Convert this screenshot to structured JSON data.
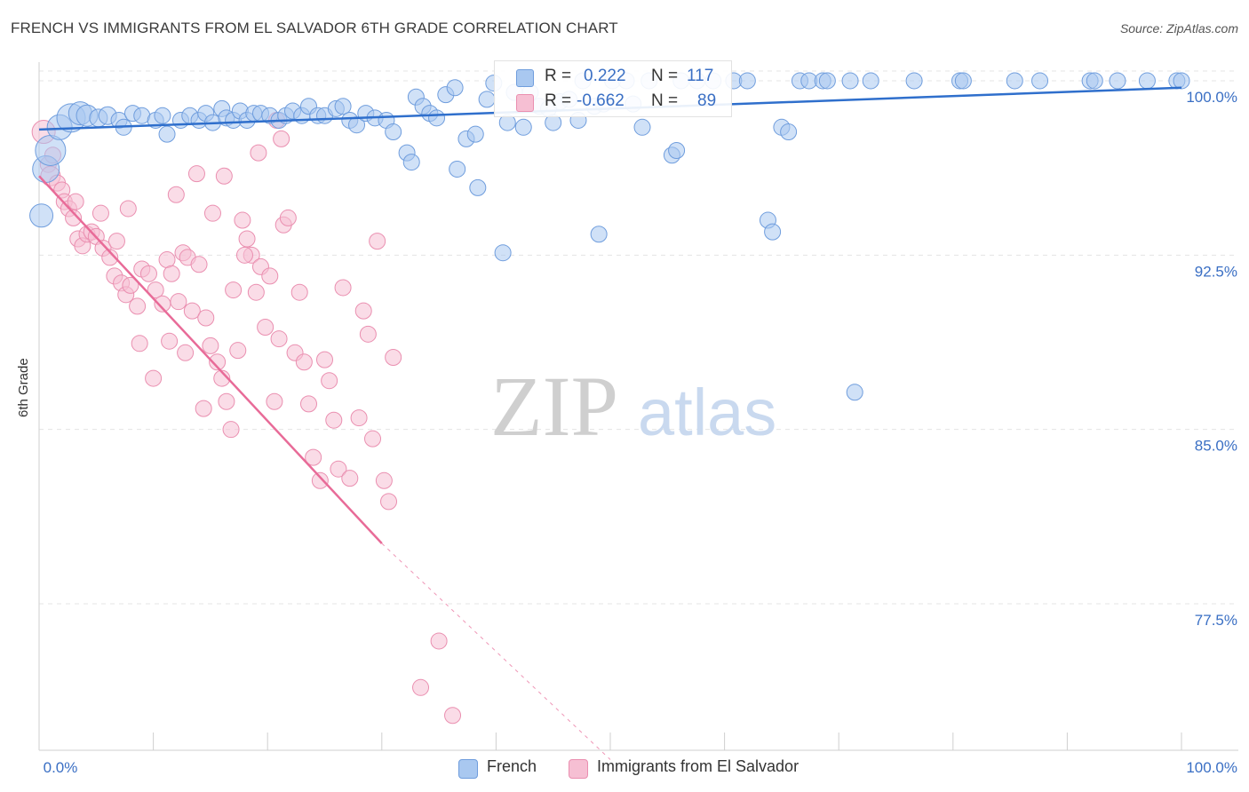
{
  "header": {
    "title": "FRENCH VS IMMIGRANTS FROM EL SALVADOR 6TH GRADE CORRELATION CHART",
    "source": "Source: ZipAtlas.com"
  },
  "watermark": {
    "zip": "ZIP",
    "atlas": "atlas"
  },
  "legend_top": {
    "rows": [
      {
        "r_label": "R =",
        "r_value": "0.222",
        "n_label": "N =",
        "n_value": "117"
      },
      {
        "r_label": "R =",
        "r_value": "-0.662",
        "n_label": "N =",
        "n_value": "89"
      }
    ]
  },
  "legend_bottom": {
    "items": [
      {
        "label": "French"
      },
      {
        "label": "Immigrants from El Salvador"
      }
    ]
  },
  "chart_data": {
    "type": "scatter",
    "title": "FRENCH VS IMMIGRANTS FROM EL SALVADOR 6TH GRADE CORRELATION CHART",
    "xlabel": "",
    "ylabel": "6th Grade",
    "xlim": [
      0,
      100
    ],
    "ylim": [
      71.2,
      100.8
    ],
    "x_tick_labels": [
      "0.0%",
      "100.0%"
    ],
    "y_ticks": [
      {
        "value": 100.0,
        "label": "100.0%"
      },
      {
        "value": 92.5,
        "label": "92.5%"
      },
      {
        "value": 85.0,
        "label": "85.0%"
      },
      {
        "value": 77.5,
        "label": "77.5%"
      }
    ],
    "grid": "horizontal dashed",
    "legend_position": "top-center",
    "colors": {
      "french_fill": "#a9c8f0",
      "french_stroke": "#6f9ddd",
      "french_line": "#2f6fcc",
      "salvador_fill": "#f6bfd3",
      "salvador_stroke": "#ea8fb0",
      "salvador_line": "#e86b98",
      "axis_text": "#3a6fc4"
    },
    "series": [
      {
        "name": "French",
        "r": 0.222,
        "n": 117,
        "trend": {
          "x": [
            0,
            100
          ],
          "y": [
            97.9,
            99.7
          ]
        },
        "points": [
          [
            0.2,
            94.2,
            13
          ],
          [
            0.6,
            96.2,
            15
          ],
          [
            1.0,
            97.0,
            17
          ],
          [
            1.8,
            98.0,
            14
          ],
          [
            2.8,
            98.4,
            16
          ],
          [
            3.6,
            98.6,
            13
          ],
          [
            4.2,
            98.5,
            12
          ],
          [
            5.2,
            98.4,
            10
          ],
          [
            6.0,
            98.5,
            10
          ],
          [
            7.0,
            98.3,
            9
          ],
          [
            7.4,
            98.0,
            9
          ],
          [
            8.2,
            98.6,
            9
          ],
          [
            9.0,
            98.5,
            9
          ],
          [
            10.2,
            98.3,
            9
          ],
          [
            10.8,
            98.5,
            9
          ],
          [
            11.2,
            97.7,
            9
          ],
          [
            12.4,
            98.3,
            9
          ],
          [
            13.2,
            98.5,
            9
          ],
          [
            14.0,
            98.3,
            9
          ],
          [
            14.6,
            98.6,
            9
          ],
          [
            15.2,
            98.2,
            9
          ],
          [
            16.0,
            98.8,
            9
          ],
          [
            16.4,
            98.4,
            9
          ],
          [
            17.0,
            98.3,
            9
          ],
          [
            17.6,
            98.7,
            9
          ],
          [
            18.2,
            98.3,
            9
          ],
          [
            18.8,
            98.6,
            9
          ],
          [
            19.4,
            98.6,
            9
          ],
          [
            20.2,
            98.5,
            9
          ],
          [
            21.0,
            98.3,
            9
          ],
          [
            21.6,
            98.5,
            9
          ],
          [
            22.2,
            98.7,
            9
          ],
          [
            23.0,
            98.5,
            9
          ],
          [
            23.6,
            98.9,
            9
          ],
          [
            24.4,
            98.5,
            9
          ],
          [
            25.0,
            98.5,
            9
          ],
          [
            26.0,
            98.8,
            9
          ],
          [
            26.6,
            98.9,
            9
          ],
          [
            27.2,
            98.3,
            9
          ],
          [
            27.8,
            98.1,
            9
          ],
          [
            28.6,
            98.6,
            9
          ],
          [
            29.4,
            98.4,
            9
          ],
          [
            30.4,
            98.3,
            9
          ],
          [
            31.0,
            97.8,
            9
          ],
          [
            32.2,
            96.9,
            9
          ],
          [
            32.6,
            96.5,
            9
          ],
          [
            33.0,
            99.3,
            9
          ],
          [
            33.6,
            98.9,
            9
          ],
          [
            34.2,
            98.6,
            9
          ],
          [
            34.8,
            98.4,
            9
          ],
          [
            35.6,
            99.4,
            9
          ],
          [
            36.4,
            99.7,
            9
          ],
          [
            36.6,
            96.2,
            9
          ],
          [
            37.4,
            97.5,
            9
          ],
          [
            38.2,
            97.7,
            9
          ],
          [
            38.4,
            95.4,
            9
          ],
          [
            39.2,
            99.2,
            9
          ],
          [
            39.8,
            99.9,
            9
          ],
          [
            40.6,
            92.6,
            9
          ],
          [
            41.0,
            98.2,
            9
          ],
          [
            41.6,
            99.5,
            9
          ],
          [
            42.4,
            98.0,
            9
          ],
          [
            43.0,
            99.5,
            9
          ],
          [
            43.8,
            98.9,
            9
          ],
          [
            44.6,
            98.8,
            9
          ],
          [
            45.0,
            98.2,
            9
          ],
          [
            45.6,
            99.1,
            9
          ],
          [
            46.4,
            99.2,
            9
          ],
          [
            47.2,
            98.3,
            9
          ],
          [
            47.6,
            100.0,
            9
          ],
          [
            48.6,
            98.9,
            9
          ],
          [
            49.0,
            93.4,
            9
          ],
          [
            49.4,
            99.0,
            9
          ],
          [
            50.2,
            100.0,
            9
          ],
          [
            51.4,
            100.0,
            9
          ],
          [
            52.0,
            99.0,
            9
          ],
          [
            52.8,
            98.0,
            9
          ],
          [
            53.4,
            100.0,
            9
          ],
          [
            55.4,
            96.8,
            9
          ],
          [
            55.8,
            97.0,
            9
          ],
          [
            56.2,
            100.0,
            9
          ],
          [
            57.6,
            100.0,
            9
          ],
          [
            59.0,
            100.0,
            9
          ],
          [
            60.8,
            100.0,
            9
          ],
          [
            62.0,
            100.0,
            9
          ],
          [
            63.8,
            94.0,
            9
          ],
          [
            64.2,
            93.5,
            9
          ],
          [
            65.0,
            98.0,
            9
          ],
          [
            65.6,
            97.8,
            9
          ],
          [
            66.6,
            100.0,
            9
          ],
          [
            67.4,
            100.0,
            9
          ],
          [
            68.6,
            100.0,
            9
          ],
          [
            69.0,
            100.0,
            9
          ],
          [
            71.0,
            100.0,
            9
          ],
          [
            71.4,
            86.6,
            9
          ],
          [
            72.8,
            100.0,
            9
          ],
          [
            76.6,
            100.0,
            9
          ],
          [
            80.6,
            100.0,
            9
          ],
          [
            80.9,
            100.0,
            9
          ],
          [
            85.4,
            100.0,
            9
          ],
          [
            87.6,
            100.0,
            9
          ],
          [
            92.0,
            100.0,
            9
          ],
          [
            92.4,
            100.0,
            9
          ],
          [
            94.4,
            100.0,
            9
          ],
          [
            97.0,
            100.0,
            9
          ],
          [
            99.6,
            100.0,
            9
          ],
          [
            100.0,
            100.0,
            9
          ]
        ]
      },
      {
        "name": "Immigrants from El Salvador",
        "r": -0.662,
        "n": 89,
        "trend": {
          "x": [
            0,
            30
          ],
          "y": [
            95.9,
            80.1
          ],
          "dash_to": {
            "x": 50,
            "y": 70.8
          }
        },
        "points": [
          [
            0.4,
            97.8,
            13
          ],
          [
            0.8,
            96.4,
            9
          ],
          [
            1.0,
            95.9,
            11
          ],
          [
            1.2,
            96.8,
            9
          ],
          [
            1.6,
            95.6,
            9
          ],
          [
            2.0,
            95.3,
            9
          ],
          [
            2.2,
            94.8,
            9
          ],
          [
            2.6,
            94.5,
            9
          ],
          [
            3.0,
            94.1,
            9
          ],
          [
            3.2,
            94.8,
            9
          ],
          [
            3.4,
            93.2,
            9
          ],
          [
            3.8,
            92.9,
            9
          ],
          [
            4.2,
            93.4,
            9
          ],
          [
            4.6,
            93.5,
            9
          ],
          [
            5.0,
            93.3,
            9
          ],
          [
            5.6,
            92.8,
            9
          ],
          [
            6.2,
            92.4,
            9
          ],
          [
            6.6,
            91.6,
            9
          ],
          [
            7.2,
            91.3,
            9
          ],
          [
            7.6,
            90.8,
            9
          ],
          [
            8.0,
            91.2,
            9
          ],
          [
            8.6,
            90.3,
            9
          ],
          [
            9.0,
            91.9,
            9
          ],
          [
            9.6,
            91.7,
            9
          ],
          [
            10.2,
            91.0,
            9
          ],
          [
            10.8,
            90.4,
            9
          ],
          [
            11.2,
            92.3,
            9
          ],
          [
            11.6,
            91.7,
            9
          ],
          [
            12.2,
            90.5,
            9
          ],
          [
            12.6,
            92.6,
            9
          ],
          [
            13.0,
            92.4,
            9
          ],
          [
            13.4,
            90.1,
            9
          ],
          [
            14.0,
            92.1,
            9
          ],
          [
            14.6,
            89.8,
            9
          ],
          [
            15.0,
            88.6,
            9
          ],
          [
            15.6,
            87.9,
            9
          ],
          [
            16.0,
            87.2,
            9
          ],
          [
            16.4,
            86.2,
            9
          ],
          [
            16.8,
            85.0,
            9
          ],
          [
            17.4,
            88.4,
            9
          ],
          [
            17.8,
            94.0,
            9
          ],
          [
            18.2,
            93.2,
            9
          ],
          [
            18.6,
            92.5,
            9
          ],
          [
            19.0,
            90.9,
            9
          ],
          [
            19.4,
            92.0,
            9
          ],
          [
            19.8,
            89.4,
            9
          ],
          [
            20.2,
            91.6,
            9
          ],
          [
            20.6,
            86.2,
            9
          ],
          [
            21.0,
            88.9,
            9
          ],
          [
            21.4,
            93.8,
            9
          ],
          [
            21.8,
            94.1,
            9
          ],
          [
            22.4,
            88.3,
            9
          ],
          [
            22.8,
            90.9,
            9
          ],
          [
            23.2,
            87.9,
            9
          ],
          [
            23.6,
            86.1,
            9
          ],
          [
            24.0,
            83.8,
            9
          ],
          [
            24.6,
            82.8,
            9
          ],
          [
            25.0,
            88.0,
            9
          ],
          [
            25.4,
            87.1,
            9
          ],
          [
            25.8,
            85.4,
            9
          ],
          [
            26.2,
            83.3,
            9
          ],
          [
            26.6,
            91.1,
            9
          ],
          [
            27.2,
            82.9,
            9
          ],
          [
            28.0,
            85.5,
            9
          ],
          [
            28.4,
            90.1,
            9
          ],
          [
            28.8,
            89.1,
            9
          ],
          [
            29.2,
            84.6,
            9
          ],
          [
            29.6,
            93.1,
            9
          ],
          [
            30.2,
            82.8,
            9
          ],
          [
            30.6,
            81.9,
            9
          ],
          [
            31.0,
            88.1,
            9
          ],
          [
            8.8,
            88.7,
            9
          ],
          [
            10.0,
            87.2,
            9
          ],
          [
            11.4,
            88.8,
            9
          ],
          [
            12.8,
            88.3,
            9
          ],
          [
            14.4,
            85.9,
            9
          ],
          [
            15.2,
            94.3,
            9
          ],
          [
            16.2,
            95.9,
            9
          ],
          [
            17.0,
            91.0,
            9
          ],
          [
            18.0,
            92.5,
            9
          ],
          [
            19.2,
            96.9,
            9
          ],
          [
            20.8,
            98.3,
            9
          ],
          [
            21.2,
            97.5,
            9
          ],
          [
            5.4,
            94.3,
            9
          ],
          [
            6.8,
            93.1,
            9
          ],
          [
            7.8,
            94.5,
            9
          ],
          [
            12.0,
            95.1,
            9
          ],
          [
            13.8,
            96.0,
            9
          ],
          [
            33.4,
            73.9,
            9
          ],
          [
            35.0,
            75.9,
            9
          ],
          [
            36.2,
            72.7,
            9
          ]
        ]
      }
    ]
  }
}
